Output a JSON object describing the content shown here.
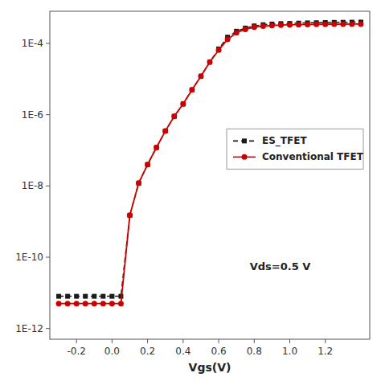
{
  "chart_data": {
    "type": "line",
    "log": "y",
    "grid": false,
    "legend": "right",
    "xlabel": "Vgs(V)",
    "annotation": "Vds=0.5 V",
    "xlim": [
      -0.35,
      1.45
    ],
    "ylim": [
      5e-13,
      0.0008
    ],
    "xticks": [
      -0.2,
      {
        "value": 0.0,
        "label": "0.0"
      },
      0.2,
      0.4,
      0.6,
      0.8,
      {
        "value": 1.0,
        "label": "1.0"
      },
      1.2
    ],
    "yticks": [
      {
        "value": 1e-12,
        "label": "1E-12"
      },
      {
        "value": 1e-10,
        "label": "1E-10"
      },
      {
        "value": 1e-08,
        "label": "1E-8"
      },
      {
        "value": 1e-06,
        "label": "1E-6"
      },
      {
        "value": 0.0001,
        "label": "1E-4"
      }
    ],
    "x": [
      -0.3,
      -0.25,
      -0.2,
      -0.15,
      -0.1,
      -0.05,
      0.0,
      0.05,
      0.1,
      0.15,
      0.2,
      0.25,
      0.3,
      0.35,
      0.4,
      0.45,
      0.5,
      0.55,
      0.6,
      0.65,
      0.7,
      0.75,
      0.8,
      0.85,
      0.9,
      0.95,
      1.0,
      1.05,
      1.1,
      1.15,
      1.2,
      1.25,
      1.3,
      1.35,
      1.4
    ],
    "series": [
      {
        "name": "ES_TFET",
        "color": "#1a1a1a",
        "marker": "square",
        "line_style": "dashed",
        "values": [
          8e-12,
          8e-12,
          8e-12,
          8e-12,
          8e-12,
          8e-12,
          8e-12,
          8e-12,
          1.5e-09,
          1.2e-08,
          4e-08,
          1.2e-07,
          3.5e-07,
          9e-07,
          2e-06,
          5e-06,
          1.2e-05,
          3e-05,
          7e-05,
          0.00015,
          0.00022,
          0.00027,
          0.00031,
          0.000335,
          0.00035,
          0.00036,
          0.000365,
          0.000372,
          0.000378,
          0.000382,
          0.000386,
          0.00039,
          0.000392,
          0.000395,
          0.000397
        ]
      },
      {
        "name": "Conventional TFET",
        "color": "#cc0000",
        "marker": "circle",
        "line_style": "solid",
        "values": [
          5e-12,
          5e-12,
          5e-12,
          5e-12,
          5e-12,
          5e-12,
          5e-12,
          5e-12,
          1.5e-09,
          1.2e-08,
          4e-08,
          1.2e-07,
          3.5e-07,
          9e-07,
          2e-06,
          5e-06,
          1.2e-05,
          3e-05,
          6.5e-05,
          0.00013,
          0.0002,
          0.00025,
          0.000285,
          0.000305,
          0.000318,
          0.000327,
          0.000332,
          0.000337,
          0.00034,
          0.000343,
          0.000345,
          0.000347,
          0.000348,
          0.000349,
          0.00035
        ]
      }
    ]
  }
}
